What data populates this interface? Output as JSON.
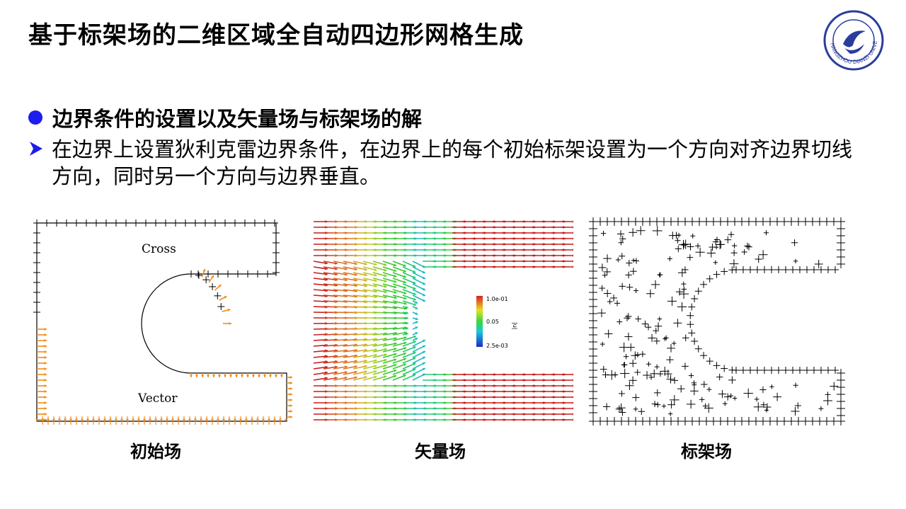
{
  "slide": {
    "title": "基于标架场的二维区域全自动四边形网格生成",
    "bullet": "边界条件的设置以及矢量场与标架场的解",
    "sub_bullet": "在边界上设置狄利克雷边界条件，在边界上的每个初始标架设置为一个方向对齐边界切线方向，同时另一个方向与边界垂直。"
  },
  "figures": {
    "initial": {
      "caption": "初始场",
      "cross_label": "Cross",
      "vector_label": "Vector",
      "cross_color": "#000000",
      "vector_color": "#f28c1a"
    },
    "vector": {
      "caption": "矢量场",
      "colorbar": {
        "max": "1.0e-01",
        "mid": "0.05",
        "min": "2.5e-03",
        "symbol": "|u|"
      }
    },
    "frame": {
      "caption": "标架场"
    }
  },
  "logo": {
    "text": "HANGZHOU DIANZI UNIVERSITY",
    "color": "#2a3d9a"
  }
}
